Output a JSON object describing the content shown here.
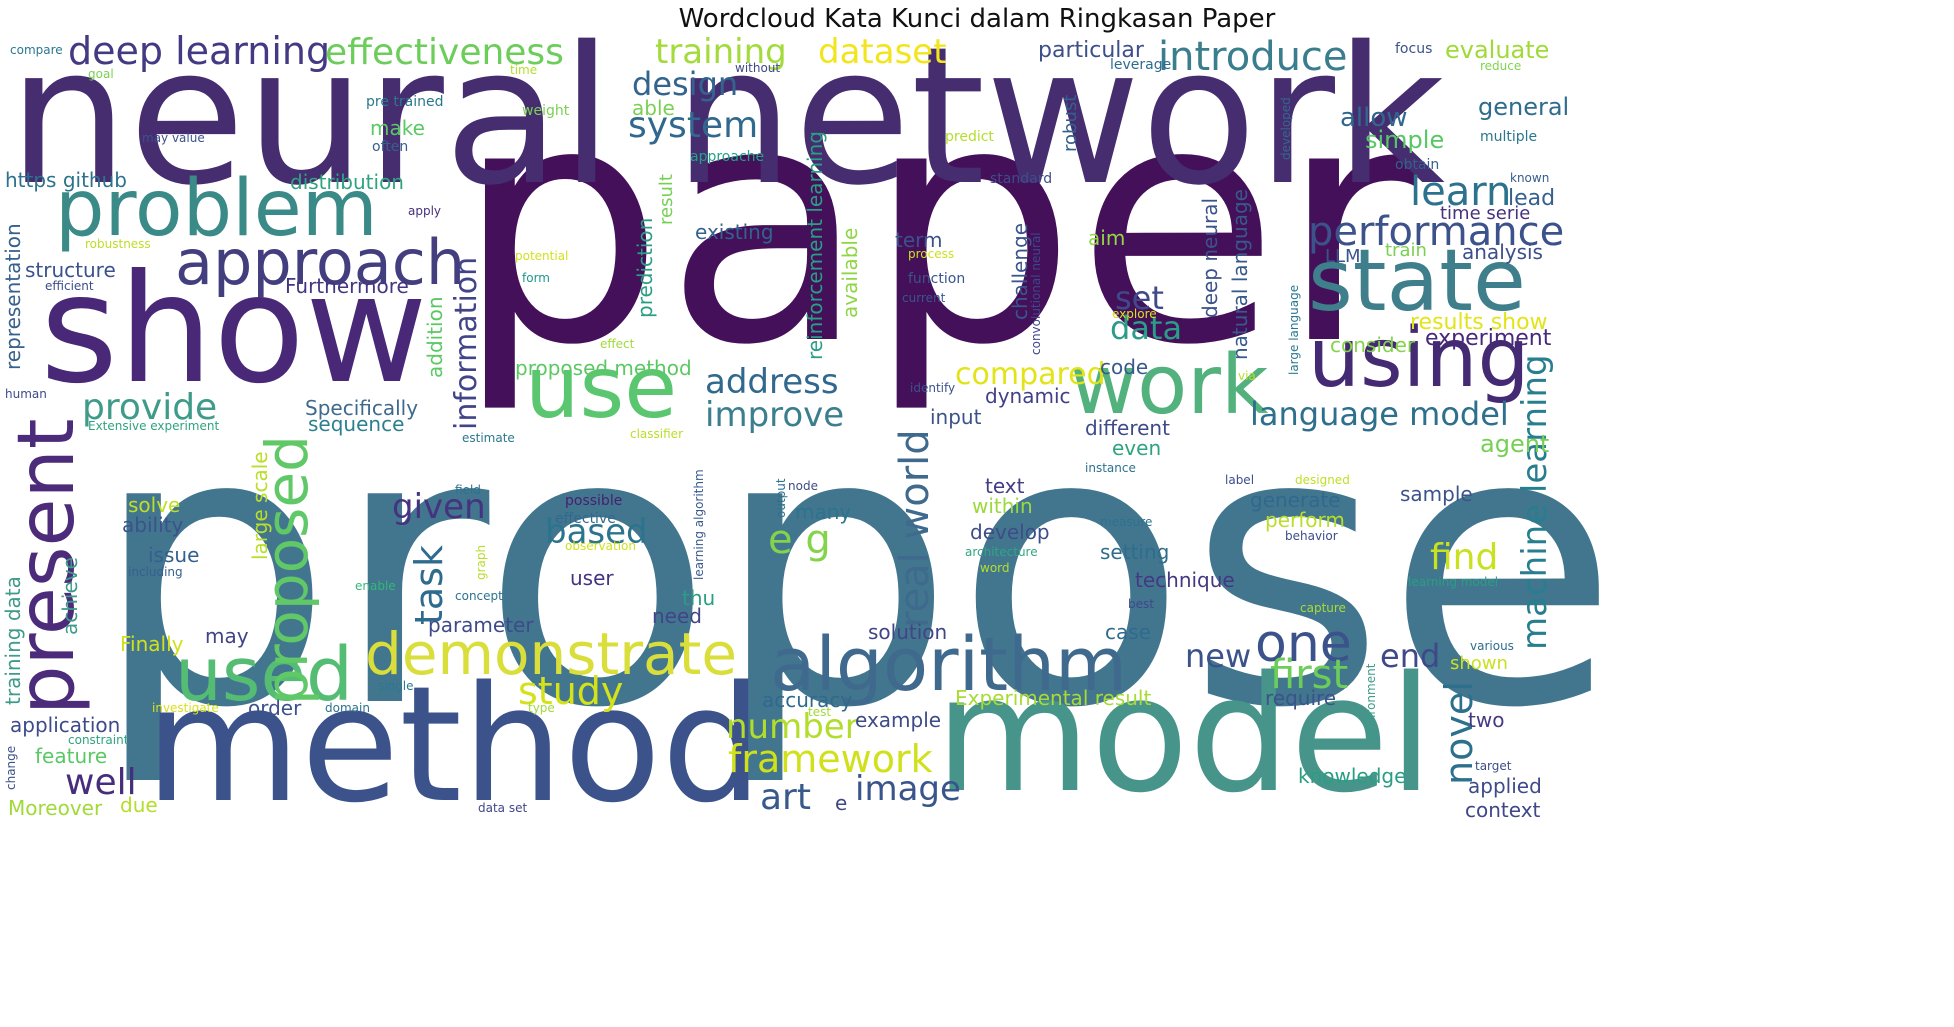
{
  "title": "Wordcloud Kata Kunci dalam Ringkasan Paper",
  "words": {
    "propose": "propose",
    "paper": "paper",
    "neural_network": "neural network",
    "show": "show",
    "method": "method",
    "model": "model",
    "problem": "problem",
    "approach": "approach",
    "state": "state",
    "using": "using",
    "use": "use",
    "work": "work",
    "algorithm": "algorithm",
    "present": "present",
    "used": "used",
    "proposed": "proposed",
    "demonstrate": "demonstrate",
    "deep_learning": "deep learning",
    "effectiveness": "effectiveness",
    "training": "training",
    "dataset": "dataset",
    "introduce": "introduce",
    "design": "design",
    "system": "system",
    "performance": "performance",
    "learn": "learn",
    "language_model": "language model",
    "machine_learning": "machine learning",
    "real_world": "real world",
    "one": "one",
    "first": "first",
    "novel": "novel",
    "study": "study",
    "framework": "framework",
    "number": "number",
    "address": "address",
    "improve": "improve",
    "provide": "provide",
    "well": "well",
    "art": "art",
    "image": "image",
    "task": "task",
    "information": "information",
    "given": "given",
    "based": "based",
    "e_g": "e g",
    "set": "set",
    "data": "data",
    "compared": "compared",
    "new": "new",
    "end": "end",
    "find": "find",
    "results_show": "results show",
    "experiment": "experiment",
    "agent": "agent",
    "evaluate": "evaluate",
    "general": "general",
    "allow": "allow",
    "simple": "simple",
    "particular": "particular",
    "leverage": "leverage",
    "focus": "focus",
    "reduce": "reduce",
    "multiple": "multiple",
    "obtain": "obtain",
    "known": "known",
    "lead": "lead",
    "time_serie": "time serie",
    "analysis": "analysis",
    "train": "train",
    "LLM": "LLM",
    "consider": "consider",
    "robust": "robust",
    "standard": "standard",
    "developed": "developed",
    "predict": "predict",
    "approache": "approache",
    "able": "able",
    "make": "make",
    "often": "often",
    "weight": "weight",
    "pre_trained": "pre trained",
    "without": "without",
    "time": "time",
    "goal": "goal",
    "compare": "compare",
    "may_value": "may value",
    "https_github": "https github",
    "distribution": "distribution",
    "apply": "apply",
    "representation": "representation",
    "robustness": "robustness",
    "structure": "structure",
    "efficient": "efficient",
    "Furthermore": "Furthermore",
    "human": "human",
    "existing": "existing",
    "term": "term",
    "aim": "aim",
    "potential": "potential",
    "form": "form",
    "process": "process",
    "function": "function",
    "current": "current",
    "explore": "explore",
    "result": "result",
    "prediction": "prediction",
    "reinforcement_learning": "reinforcement learning",
    "available": "available",
    "challenge": "challenge",
    "convolutional_neural": "convolutional neural",
    "deep_neural": "deep neural",
    "natural_language": "natural language",
    "large_language": "large language",
    "addition": "addition",
    "proposed_method": "proposed method",
    "effect": "effect",
    "identify": "identify",
    "code": "code",
    "via": "via",
    "dynamic": "dynamic",
    "input": "input",
    "Specifically": "Specifically",
    "sequence": "sequence",
    "Extensive_experiment": "Extensive experiment",
    "estimate": "estimate",
    "classifier": "classifier",
    "different": "different",
    "even": "even",
    "instance": "instance",
    "text": "text",
    "within": "within",
    "develop": "develop",
    "architecture": "architecture",
    "word": "word",
    "setting": "setting",
    "technique": "technique",
    "label": "label",
    "designed": "designed",
    "generate": "generate",
    "perform": "perform",
    "sample": "sample",
    "behavior": "behavior",
    "measure": "measure",
    "learning_model": "learning model",
    "capture": "capture",
    "best": "best",
    "various": "various",
    "shown": "shown",
    "environment": "environment",
    "require": "require",
    "two": "two",
    "knowledge": "knowledge",
    "target": "target",
    "applied": "applied",
    "context": "context",
    "solution": "solution",
    "case": "case",
    "accuracy": "accuracy",
    "example": "example",
    "test": "test",
    "Experimental_result": "Experimental result",
    "many": "many",
    "output": "output",
    "node": "node",
    "field": "field",
    "possible": "possible",
    "effective": "effective",
    "observation": "observation",
    "learning_algorithm": "learning algorithm",
    "graph": "graph",
    "concept": "concept",
    "user": "user",
    "parameter": "parameter",
    "need": "need",
    "thu": "thu",
    "issue": "issue",
    "including": "including",
    "enable": "enable",
    "ability": "ability",
    "solve": "solve",
    "achieve": "achieve",
    "training_data": "training data",
    "large_scale": "large scale",
    "may": "may",
    "Finally": "Finally",
    "single": "single",
    "investigate": "investigate",
    "order": "order",
    "application": "application",
    "constraint": "constraint",
    "feature": "feature",
    "change": "change",
    "due": "due",
    "domain": "domain",
    "type": "type",
    "Moreover": "Moreover",
    "data_set": "data set",
    "e": "e"
  }
}
